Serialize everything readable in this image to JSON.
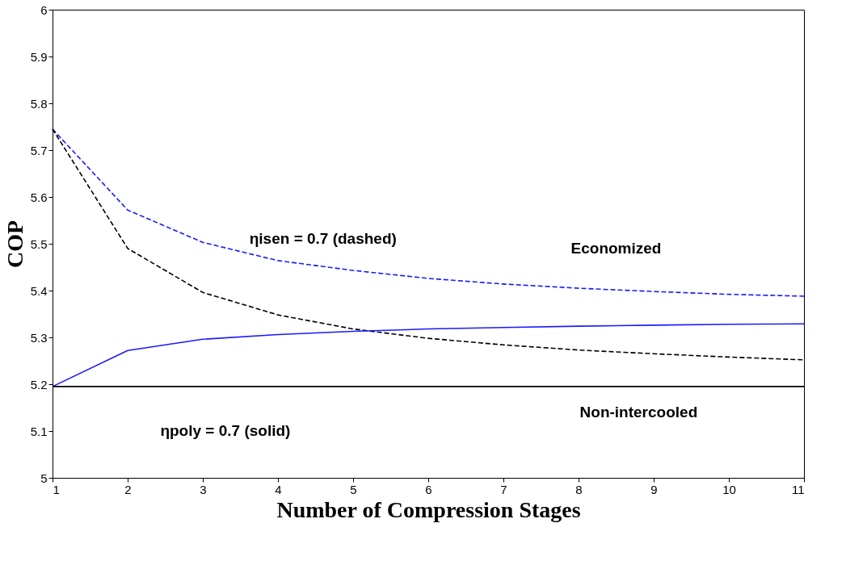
{
  "chart_data": {
    "type": "line",
    "xlabel": "Number of Compression Stages",
    "ylabel": "COP",
    "x": [
      1,
      2,
      3,
      4,
      5,
      6,
      7,
      8,
      9,
      10,
      11
    ],
    "xlim": [
      1,
      11
    ],
    "xticks": [
      1,
      2,
      3,
      4,
      5,
      6,
      7,
      8,
      9,
      10,
      11
    ],
    "ylim": [
      5,
      6
    ],
    "yticks": [
      5,
      5.1,
      5.2,
      5.3,
      5.4,
      5.5,
      5.6,
      5.7,
      5.8,
      5.9,
      6
    ],
    "grid": false,
    "marker": "none",
    "series": [
      {
        "color": "#1a1aff",
        "line_style": "dashed",
        "values": [
          5.745,
          5.572,
          5.503,
          5.464,
          5.443,
          5.426,
          5.414,
          5.405,
          5.398,
          5.392,
          5.388
        ]
      },
      {
        "color": "#000000",
        "line_style": "dashed",
        "values": [
          5.745,
          5.49,
          5.396,
          5.348,
          5.318,
          5.298,
          5.284,
          5.273,
          5.265,
          5.258,
          5.252
        ]
      },
      {
        "color": "#1a1aff",
        "line_style": "solid",
        "values": [
          5.195,
          5.272,
          5.296,
          5.306,
          5.313,
          5.318,
          5.321,
          5.324,
          5.326,
          5.328,
          5.329
        ]
      },
      {
        "color": "#000000",
        "line_style": "solid",
        "values": [
          5.195,
          5.195,
          5.195,
          5.195,
          5.195,
          5.195,
          5.195,
          5.195,
          5.195,
          5.195,
          5.195
        ]
      }
    ],
    "annotations": [
      "ηisen = 0.7 (dashed)",
      "Economized",
      "ηpoly = 0.7 (solid)",
      "Non-intercooled"
    ]
  }
}
